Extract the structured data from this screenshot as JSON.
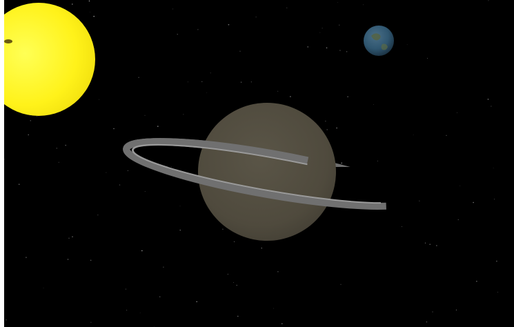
{
  "scene": {
    "background_color": "#000000",
    "page_background_color": "#ffffff",
    "bodies": [
      {
        "name": "sun",
        "color": "#fff21a",
        "glow_color": "#ffff66"
      },
      {
        "name": "saturn",
        "color": "#514c3f",
        "ring_color": "#6e6e6e",
        "ring_highlight_color": "#9a9a9a"
      },
      {
        "name": "earth",
        "color": "#2f5670",
        "land_color": "#4b5a3a"
      }
    ]
  }
}
